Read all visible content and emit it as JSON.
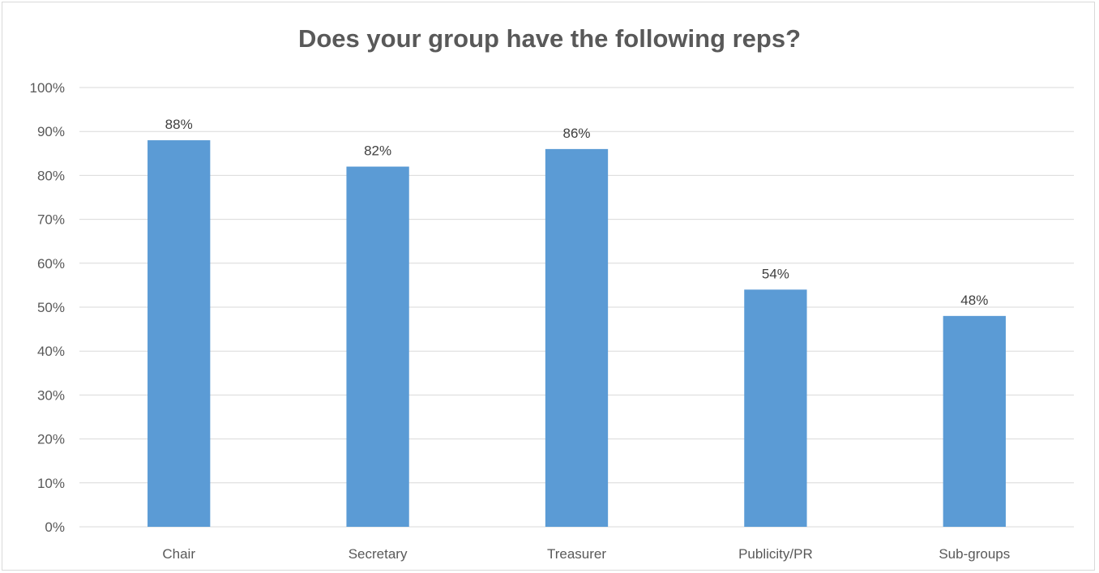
{
  "chart_data": {
    "type": "bar",
    "title": "Does your group have the following reps?",
    "xlabel": "",
    "ylabel": "",
    "categories": [
      "Chair",
      "Secretary",
      "Treasurer",
      "Publicity/PR",
      "Sub-groups"
    ],
    "values": [
      88,
      82,
      86,
      54,
      48
    ],
    "value_labels": [
      "88%",
      "82%",
      "86%",
      "54%",
      "48%"
    ],
    "ylim": [
      0,
      100
    ],
    "yticks": [
      0,
      10,
      20,
      30,
      40,
      50,
      60,
      70,
      80,
      90,
      100
    ],
    "ytick_labels": [
      "0%",
      "10%",
      "20%",
      "30%",
      "40%",
      "50%",
      "60%",
      "70%",
      "80%",
      "90%",
      "100%"
    ],
    "grid": true,
    "legend": "none",
    "colors": {
      "bar": "#5b9bd5",
      "grid": "#d9d9d9",
      "text": "#595959"
    }
  }
}
